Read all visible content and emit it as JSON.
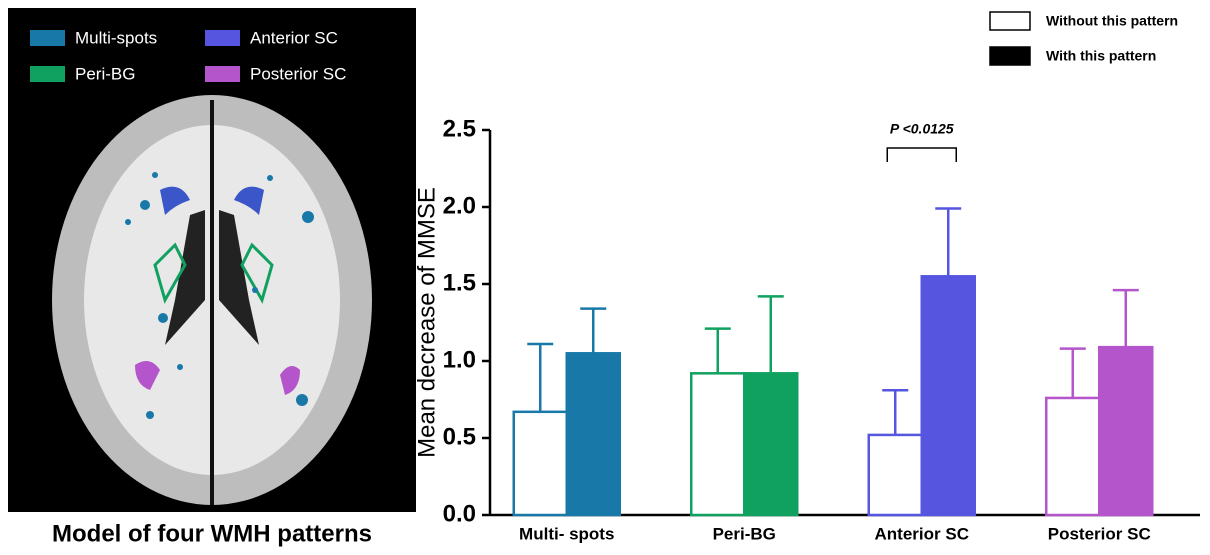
{
  "panel_a": {
    "legend": [
      "Multi-spots",
      "Peri-BG",
      "Anterior SC",
      "Posterior SC"
    ],
    "caption": "Model of four WMH patterns"
  },
  "chart_data": {
    "type": "bar",
    "y_label": "Mean decrease of MMSE",
    "categories": [
      "Multi- spots",
      "Peri-BG",
      "Anterior SC",
      "Posterior SC"
    ],
    "category_colors": [
      "#1878a8",
      "#10a060",
      "#5555e0",
      "#b455cc"
    ],
    "series": [
      {
        "name": "Without this pattern",
        "color": "#ffffff",
        "values": [
          0.67,
          0.92,
          0.52,
          0.76
        ],
        "errors": [
          0.44,
          0.29,
          0.29,
          0.32
        ]
      },
      {
        "name": "With this pattern",
        "color": "#000000",
        "values": [
          1.05,
          0.92,
          1.55,
          1.09
        ],
        "errors": [
          0.29,
          0.5,
          0.44,
          0.37
        ]
      }
    ],
    "annotation": "P <0.0125",
    "ylim": [
      0,
      2.5
    ],
    "yticks": [
      {
        "value": 0,
        "label": "0.0"
      },
      0.5,
      {
        "value": 1,
        "label": "1.0"
      },
      1.5,
      {
        "value": 2,
        "label": "2.0"
      },
      2.5
    ],
    "legend_position": "top-right",
    "grid": false
  }
}
